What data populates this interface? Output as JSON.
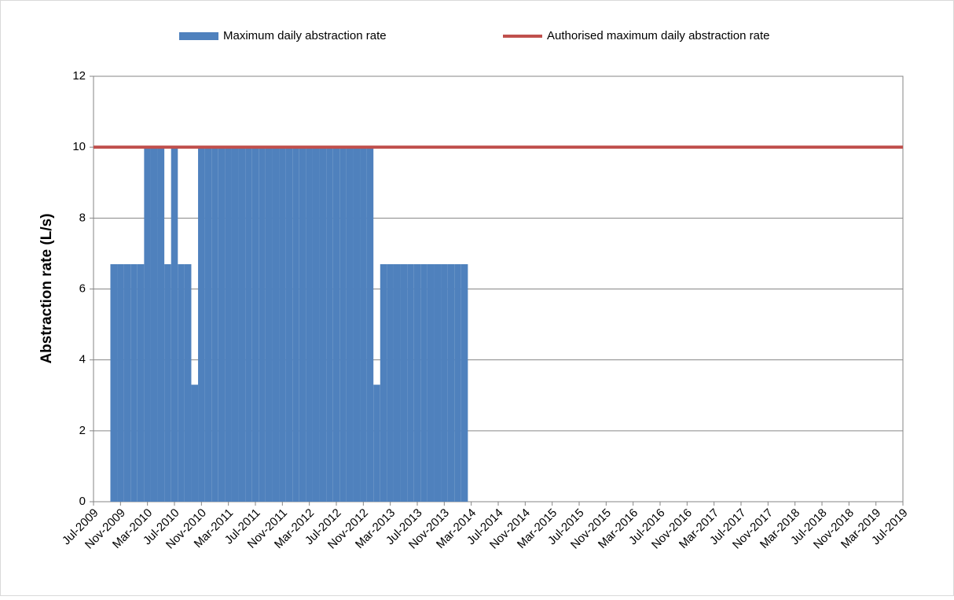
{
  "chart_data": {
    "type": "bar",
    "y_label": "Abstraction rate (L/s)",
    "categories": [
      "Jul-2009",
      null,
      null,
      null,
      "Nov-2009",
      null,
      null,
      null,
      "Mar-2010",
      null,
      null,
      null,
      "Jul-2010",
      null,
      null,
      null,
      "Nov-2010",
      null,
      null,
      null,
      "Mar-2011",
      null,
      null,
      null,
      "Jul-2011",
      null,
      null,
      null,
      "Nov-2011",
      null,
      null,
      null,
      "Mar-2012",
      null,
      null,
      null,
      "Jul-2012",
      null,
      null,
      null,
      "Nov-2012",
      null,
      null,
      null,
      "Mar-2013",
      null,
      null,
      null,
      "Jul-2013",
      null,
      null,
      null,
      "Nov-2013",
      null,
      null,
      null,
      "Mar-2014",
      null,
      null,
      null,
      "Jul-2014",
      null,
      null,
      null,
      "Nov-2014",
      null,
      null,
      null,
      "Mar-2015",
      null,
      null,
      null,
      "Jul-2015",
      null,
      null,
      null,
      "Nov-2015",
      null,
      null,
      null,
      "Mar-2016",
      null,
      null,
      null,
      "Jul-2016",
      null,
      null,
      null,
      "Nov-2016",
      null,
      null,
      null,
      "Mar-2017",
      null,
      null,
      null,
      "Jul-2017",
      null,
      null,
      null,
      "Nov-2017",
      null,
      null,
      null,
      "Mar-2018",
      null,
      null,
      null,
      "Jul-2018",
      null,
      null,
      null,
      "Nov-2018",
      null,
      null,
      null,
      "Mar-2019",
      null,
      null,
      null,
      "Jul-2019"
    ],
    "series": [
      {
        "name": "Maximum daily abstraction rate",
        "color": "#4f81bd",
        "values": [
          null,
          null,
          null,
          6.7,
          6.7,
          6.7,
          6.7,
          6.7,
          10,
          10,
          10,
          6.7,
          10,
          6.7,
          6.7,
          3.3,
          10,
          10,
          10,
          10,
          10,
          10,
          10,
          10,
          10,
          10,
          10,
          10,
          10,
          10,
          10,
          10,
          10,
          10,
          10,
          10,
          10,
          10,
          10,
          10,
          10,
          10,
          3.3,
          6.7,
          6.7,
          6.7,
          6.7,
          6.7,
          6.7,
          6.7,
          6.7,
          6.7,
          6.7,
          6.7,
          6.7,
          6.7,
          null,
          null,
          null,
          null,
          null,
          null,
          null,
          null,
          null,
          null,
          null,
          null,
          null,
          null,
          null,
          null,
          null,
          null,
          null,
          null,
          null,
          null,
          null,
          null,
          null,
          null,
          null,
          null,
          null,
          null,
          null,
          null,
          null,
          null,
          null,
          null,
          null,
          null,
          null,
          null,
          null,
          null,
          null,
          null,
          null,
          null,
          null,
          null,
          null,
          null,
          null,
          null,
          null,
          null,
          null,
          null,
          null,
          null,
          null,
          null,
          null,
          null,
          null,
          null,
          null
        ]
      },
      {
        "name": "Authorised maximum daily abstraction rate",
        "color": "#c0504d",
        "line": true,
        "values": [
          10,
          10,
          10,
          10,
          10,
          10,
          10,
          10,
          10,
          10,
          10,
          10,
          10,
          10,
          10,
          10,
          10,
          10,
          10,
          10,
          10,
          10,
          10,
          10,
          10,
          10,
          10,
          10,
          10,
          10,
          10,
          10,
          10,
          10,
          10,
          10,
          10,
          10,
          10,
          10,
          10,
          10,
          10,
          10,
          10,
          10,
          10,
          10,
          10,
          10,
          10,
          10,
          10,
          10,
          10,
          10,
          10,
          10,
          10,
          10,
          10,
          10,
          10,
          10,
          10,
          10,
          10,
          10,
          10,
          10,
          10,
          10,
          10,
          10,
          10,
          10,
          10,
          10,
          10,
          10,
          10,
          10,
          10,
          10,
          10,
          10,
          10,
          10,
          10,
          10,
          10,
          10,
          10,
          10,
          10,
          10,
          10,
          10,
          10,
          10,
          10,
          10,
          10,
          10,
          10,
          10,
          10,
          10,
          10,
          10,
          10,
          10,
          10,
          10,
          10,
          10,
          10,
          10,
          10,
          10,
          10
        ]
      }
    ],
    "ylim": [
      0,
      12
    ],
    "yticks": [
      0,
      2,
      4,
      6,
      8,
      10,
      12
    ],
    "grid": true,
    "legend": "top"
  }
}
